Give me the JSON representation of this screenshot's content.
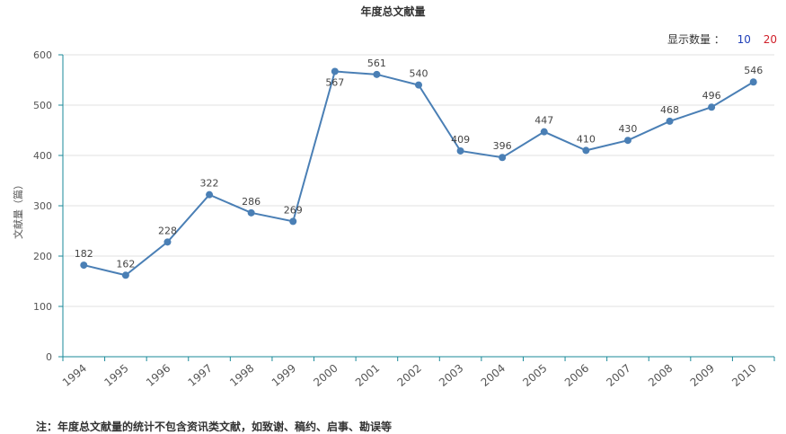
{
  "title": "年度总文献量",
  "count_selector": {
    "label": "显示数量 ：",
    "options": [
      "10",
      "20"
    ]
  },
  "note": "注：年度总文献量的统计不包含资讯类文献，如致谢、稿约、启事、勘误等",
  "chart_data": {
    "type": "line",
    "title": "年度总文献量",
    "xlabel": "",
    "ylabel": "文献量（篇）",
    "ylim": [
      0,
      600
    ],
    "yticks": [
      0,
      100,
      200,
      300,
      400,
      500,
      600
    ],
    "categories": [
      "1994",
      "1995",
      "1996",
      "1997",
      "1998",
      "1999",
      "2000",
      "2001",
      "2002",
      "2003",
      "2004",
      "2005",
      "2006",
      "2007",
      "2008",
      "2009",
      "2010"
    ],
    "series": [
      {
        "values": [
          182,
          162,
          228,
          322,
          286,
          269,
          567,
          561,
          540,
          409,
          396,
          447,
          410,
          430,
          468,
          496,
          546
        ]
      }
    ],
    "grid": true,
    "line_color": "#4a7fb5",
    "axis_color": "#1a8a9a"
  }
}
